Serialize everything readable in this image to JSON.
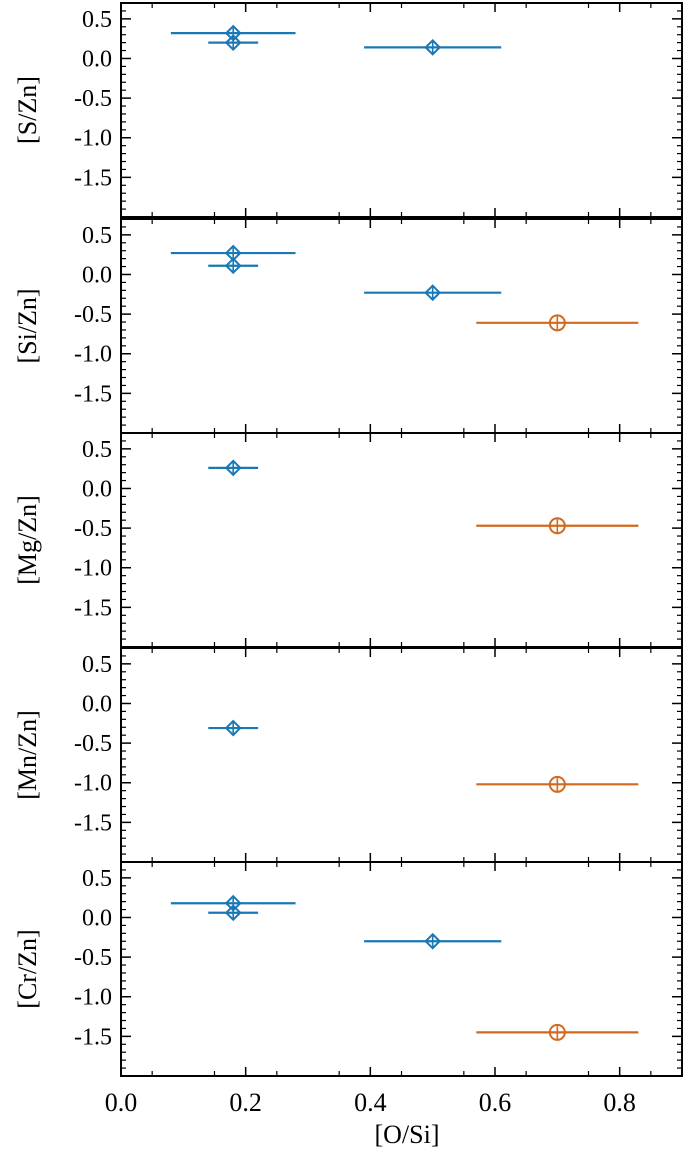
{
  "chart_data": {
    "type": "scatter",
    "layout": "vertical-stack",
    "shared_x": true,
    "xlabel": "[O/Si]",
    "xlim": [
      0.0,
      0.9
    ],
    "xticks": [
      0.0,
      0.2,
      0.4,
      0.6,
      0.8
    ],
    "xtick_labels": [
      "0.0",
      "0.2",
      "0.4",
      "0.6",
      "0.8"
    ],
    "ylim": [
      -2.0,
      0.7
    ],
    "yticks": [
      0.5,
      0.0,
      -0.5,
      -1.0,
      -1.5
    ],
    "ytick_labels": [
      "0.5",
      "0.0",
      "-0.5",
      "-1.0",
      "-1.5"
    ],
    "grid": false,
    "legend": "none",
    "colors": {
      "diamond_series": "#1a78b4",
      "circle_series": "#d2691e"
    },
    "panels": [
      {
        "ylabel": "[S/Zn]",
        "points": [
          {
            "x": 0.18,
            "y": 0.32,
            "xerr_lo": 0.1,
            "xerr_hi": 0.1,
            "marker": "diamond",
            "color": "#1a78b4"
          },
          {
            "x": 0.18,
            "y": 0.2,
            "xerr_lo": 0.04,
            "xerr_hi": 0.04,
            "marker": "diamond",
            "color": "#1a78b4"
          },
          {
            "x": 0.5,
            "y": 0.14,
            "xerr_lo": 0.11,
            "xerr_hi": 0.11,
            "marker": "diamond",
            "color": "#1a78b4"
          }
        ]
      },
      {
        "ylabel": "[Si/Zn]",
        "points": [
          {
            "x": 0.18,
            "y": 0.27,
            "xerr_lo": 0.1,
            "xerr_hi": 0.1,
            "marker": "diamond",
            "color": "#1a78b4"
          },
          {
            "x": 0.18,
            "y": 0.11,
            "xerr_lo": 0.04,
            "xerr_hi": 0.04,
            "marker": "diamond",
            "color": "#1a78b4"
          },
          {
            "x": 0.5,
            "y": -0.23,
            "xerr_lo": 0.11,
            "xerr_hi": 0.11,
            "marker": "diamond",
            "color": "#1a78b4"
          },
          {
            "x": 0.7,
            "y": -0.61,
            "xerr_lo": 0.13,
            "xerr_hi": 0.13,
            "marker": "circle",
            "color": "#d2691e"
          }
        ]
      },
      {
        "ylabel": "[Mg/Zn]",
        "points": [
          {
            "x": 0.18,
            "y": 0.26,
            "xerr_lo": 0.04,
            "xerr_hi": 0.04,
            "marker": "diamond",
            "color": "#1a78b4"
          },
          {
            "x": 0.7,
            "y": -0.47,
            "xerr_lo": 0.13,
            "xerr_hi": 0.13,
            "marker": "circle",
            "color": "#d2691e"
          }
        ]
      },
      {
        "ylabel": "[Mn/Zn]",
        "points": [
          {
            "x": 0.18,
            "y": -0.31,
            "xerr_lo": 0.04,
            "xerr_hi": 0.04,
            "marker": "diamond",
            "color": "#1a78b4"
          },
          {
            "x": 0.7,
            "y": -1.02,
            "xerr_lo": 0.13,
            "xerr_hi": 0.13,
            "marker": "circle",
            "color": "#d2691e"
          }
        ]
      },
      {
        "ylabel": "[Cr/Zn]",
        "points": [
          {
            "x": 0.18,
            "y": 0.18,
            "xerr_lo": 0.1,
            "xerr_hi": 0.1,
            "marker": "diamond",
            "color": "#1a78b4"
          },
          {
            "x": 0.18,
            "y": 0.06,
            "xerr_lo": 0.04,
            "xerr_hi": 0.04,
            "marker": "diamond",
            "color": "#1a78b4"
          },
          {
            "x": 0.5,
            "y": -0.3,
            "xerr_lo": 0.11,
            "xerr_hi": 0.11,
            "marker": "diamond",
            "color": "#1a78b4"
          },
          {
            "x": 0.7,
            "y": -1.45,
            "xerr_lo": 0.13,
            "xerr_hi": 0.13,
            "marker": "circle",
            "color": "#d2691e"
          }
        ]
      }
    ]
  }
}
